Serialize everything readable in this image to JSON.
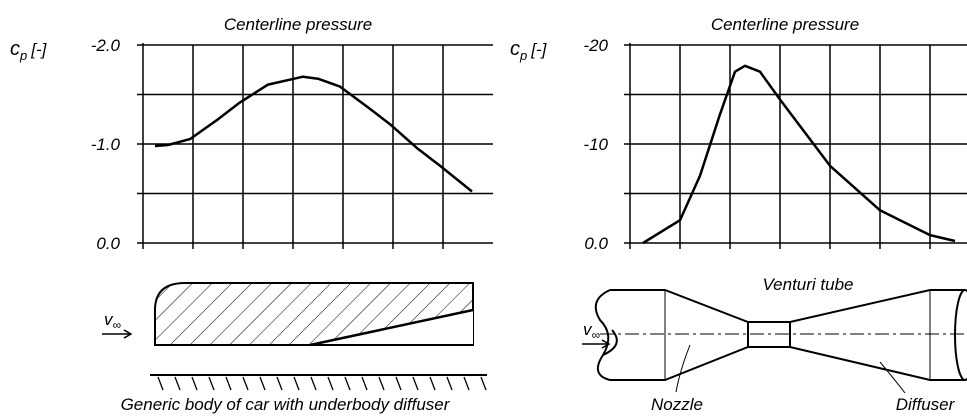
{
  "chart_data": [
    {
      "type": "line",
      "title": "Centerline pressure",
      "ylabel": {
        "symbol": "c",
        "subscript": "p",
        "unit": "[-]"
      },
      "xlim": [
        0,
        7
      ],
      "ylim": [
        0,
        -2
      ],
      "yticks": [
        {
          "value": 0,
          "label": "0.0"
        },
        {
          "value": -1,
          "label": "-1.0"
        },
        {
          "value": -2,
          "label": "-2.0"
        }
      ],
      "minor_yticks": [
        -0.5,
        -1.5
      ],
      "grid": true,
      "color": "#000000",
      "x": [
        0.24,
        0.5,
        0.94,
        1.5,
        1.94,
        2.5,
        3.2,
        3.5,
        3.94,
        4.5,
        4.94,
        5.5,
        5.94,
        6.58
      ],
      "values": [
        -0.98,
        -0.99,
        -1.05,
        -1.25,
        -1.42,
        -1.6,
        -1.68,
        -1.66,
        -1.58,
        -1.37,
        -1.2,
        -0.95,
        -0.78,
        -0.52
      ]
    },
    {
      "type": "line",
      "title": "Centerline pressure",
      "ylabel": {
        "symbol": "c",
        "subscript": "p",
        "unit": "[-]"
      },
      "xlim": [
        0,
        7
      ],
      "ylim": [
        0,
        -20
      ],
      "yticks": [
        {
          "value": 0,
          "label": "0.0"
        },
        -10,
        -20
      ],
      "minor_yticks": [
        -5,
        -15
      ],
      "grid": true,
      "color": "#000000",
      "x": [
        0.26,
        1.0,
        1.4,
        1.8,
        2.1,
        2.3,
        2.6,
        3.0,
        4.0,
        5.0,
        6.0,
        6.5
      ],
      "values": [
        0,
        -2.3,
        -6.8,
        -13,
        -17.3,
        -17.9,
        -17.3,
        -14.5,
        -7.8,
        -3.3,
        -0.8,
        -0.2
      ]
    }
  ],
  "diagrams": {
    "car": {
      "flow_label": {
        "symbol": "v",
        "subscript": "∞"
      },
      "caption": "Generic body of car with underbody diffuser"
    },
    "venturi": {
      "title": "Venturi tube",
      "flow_label": {
        "symbol": "v",
        "subscript": "∞"
      },
      "nozzle": "Nozzle",
      "diffuser": "Diffuser"
    }
  }
}
